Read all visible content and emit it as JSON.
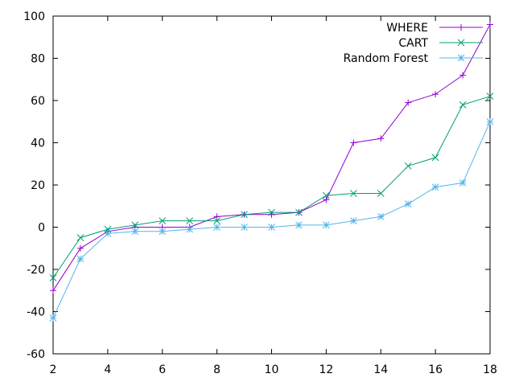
{
  "chart_data": {
    "type": "line",
    "title": "",
    "xlabel": "",
    "ylabel": "",
    "xlim": [
      2,
      18
    ],
    "ylim": [
      -60,
      100
    ],
    "xticks": [
      2,
      4,
      6,
      8,
      10,
      12,
      14,
      16,
      18
    ],
    "yticks": [
      -60,
      -40,
      -20,
      0,
      20,
      40,
      60,
      80,
      100
    ],
    "legend_position": "top-right",
    "x": [
      2,
      3,
      4,
      5,
      6,
      7,
      8,
      9,
      10,
      11,
      12,
      13,
      14,
      15,
      16,
      17,
      18
    ],
    "series": [
      {
        "name": "WHERE",
        "color": "#9400d3",
        "marker": "plus",
        "values": [
          -30,
          -10,
          -2,
          0,
          0,
          0,
          5,
          6,
          6,
          7,
          13,
          40,
          42,
          59,
          63,
          72,
          96
        ]
      },
      {
        "name": "CART",
        "color": "#009e73",
        "marker": "cross",
        "values": [
          -24,
          -5,
          -1,
          1,
          3,
          3,
          3,
          6,
          7,
          7,
          15,
          16,
          16,
          29,
          33,
          58,
          62
        ]
      },
      {
        "name": "Random Forest",
        "color": "#56b4e9",
        "marker": "star",
        "values": [
          -43,
          -15,
          -3,
          -2,
          -2,
          -1,
          0,
          0,
          0,
          1,
          1,
          3,
          5,
          11,
          19,
          21,
          50
        ]
      }
    ]
  }
}
